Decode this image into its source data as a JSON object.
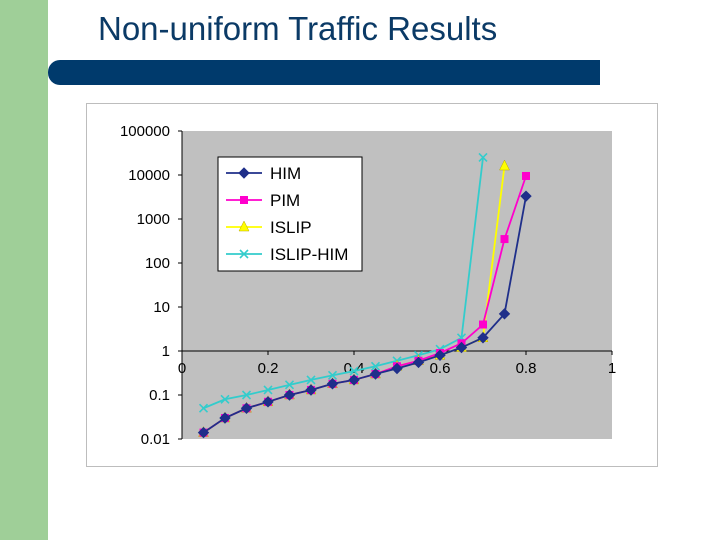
{
  "slide": {
    "title": "Non-uniform Traffic Results"
  },
  "colors": {
    "side_band": "#9fcf98",
    "title_bar": "#003a6c",
    "title_text": "#0b3a66",
    "plot_area": "#c0c0c0"
  },
  "chart_data": {
    "type": "line",
    "title": "",
    "xlabel": "",
    "ylabel": "",
    "xlim": [
      0,
      1
    ],
    "ylim": [
      0.01,
      100000
    ],
    "y_scale": "log",
    "grid": false,
    "legend_position": "top-left",
    "x_ticks": [
      "0",
      "0.2",
      "0.4",
      "0.6",
      "0.8",
      "1"
    ],
    "y_ticks": [
      "100000",
      "10000",
      "1000",
      "100",
      "10",
      "1",
      "0.1",
      "0.01"
    ],
    "series": [
      {
        "name": "HIM",
        "color": "#1f2f8a",
        "marker": "diamond",
        "x": [
          0.05,
          0.1,
          0.15,
          0.2,
          0.25,
          0.3,
          0.35,
          0.4,
          0.45,
          0.5,
          0.55,
          0.6,
          0.65,
          0.7,
          0.75,
          0.8
        ],
        "y": [
          0.014,
          0.03,
          0.05,
          0.07,
          0.1,
          0.13,
          0.18,
          0.22,
          0.3,
          0.4,
          0.55,
          0.8,
          1.2,
          2,
          7,
          3300
        ]
      },
      {
        "name": "PIM",
        "color": "#ff00cc",
        "marker": "square",
        "x": [
          0.05,
          0.1,
          0.15,
          0.2,
          0.25,
          0.3,
          0.35,
          0.4,
          0.45,
          0.5,
          0.55,
          0.6,
          0.65,
          0.7,
          0.75,
          0.8
        ],
        "y": [
          0.014,
          0.03,
          0.05,
          0.07,
          0.1,
          0.13,
          0.18,
          0.22,
          0.3,
          0.45,
          0.6,
          0.9,
          1.5,
          4,
          350,
          9500
        ]
      },
      {
        "name": "ISLIP",
        "color": "#ffff00",
        "marker": "triangle",
        "x": [
          0.05,
          0.1,
          0.15,
          0.2,
          0.25,
          0.3,
          0.35,
          0.4,
          0.45,
          0.5,
          0.55,
          0.6,
          0.65,
          0.7,
          0.75
        ],
        "y": [
          0.014,
          0.03,
          0.05,
          0.07,
          0.1,
          0.13,
          0.18,
          0.22,
          0.3,
          0.45,
          0.6,
          0.8,
          1.2,
          2,
          16000
        ]
      },
      {
        "name": "ISLIP-HIM",
        "color": "#33cccc",
        "marker": "x",
        "x": [
          0.05,
          0.1,
          0.15,
          0.2,
          0.25,
          0.3,
          0.35,
          0.4,
          0.45,
          0.5,
          0.55,
          0.6,
          0.65,
          0.7
        ],
        "y": [
          0.05,
          0.08,
          0.1,
          0.13,
          0.17,
          0.22,
          0.28,
          0.35,
          0.45,
          0.6,
          0.8,
          1.1,
          2,
          25000
        ]
      }
    ]
  }
}
